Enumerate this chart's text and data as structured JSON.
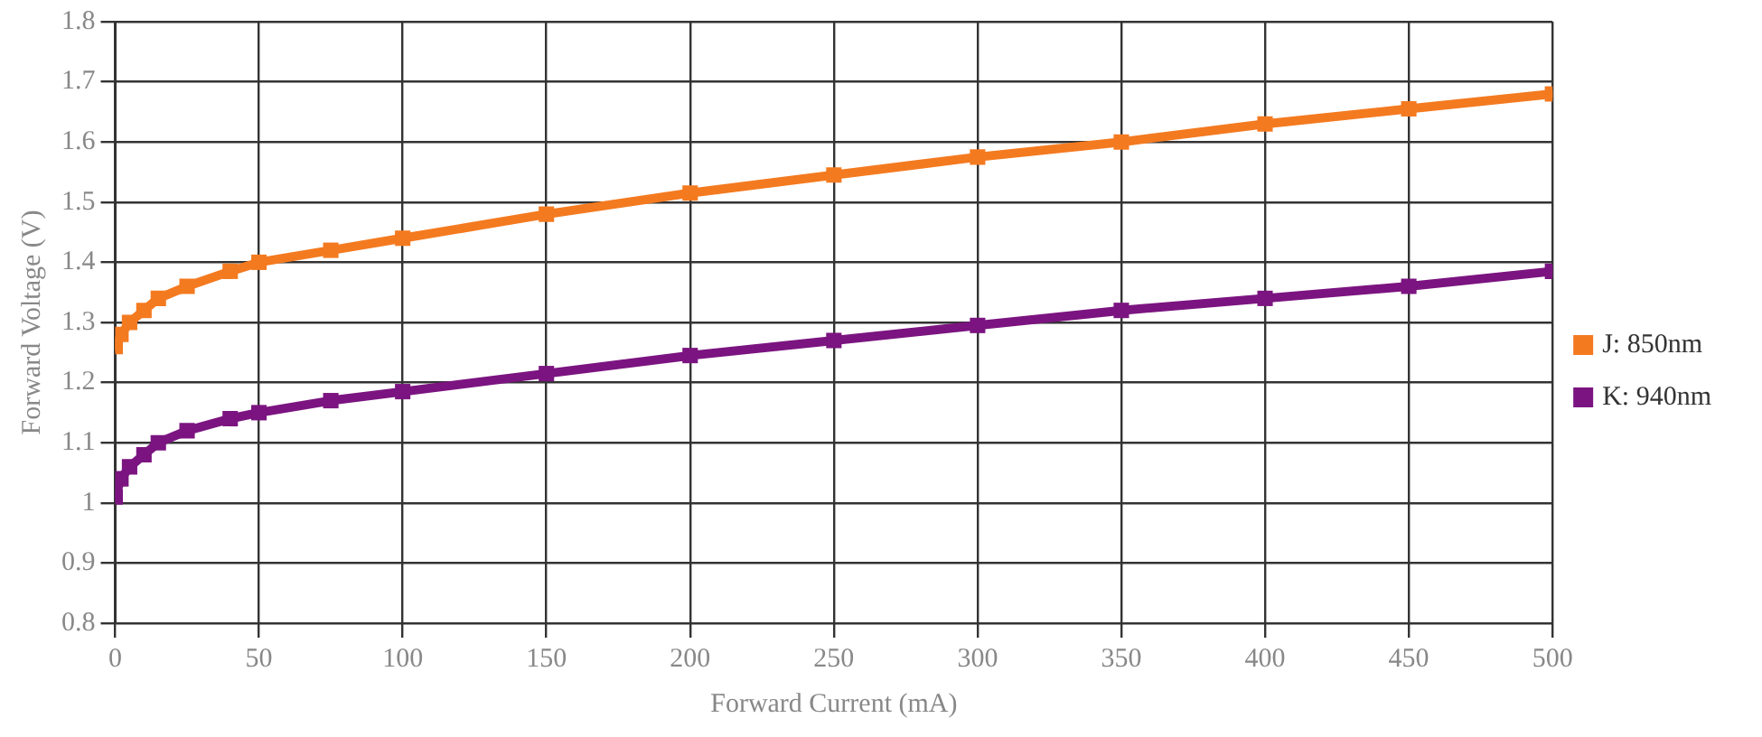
{
  "chart_data": {
    "type": "line",
    "xlabel": "Forward Current (mA)",
    "ylabel": "Forward Voltage (V)",
    "xlim": [
      0,
      500
    ],
    "xticks": [
      0,
      50,
      100,
      150,
      200,
      250,
      300,
      350,
      400,
      450,
      500
    ],
    "ylim": [
      0.8,
      1.8
    ],
    "yticks": [
      0.8,
      0.9,
      1,
      1.1,
      1.2,
      1.3,
      1.4,
      1.5,
      1.6,
      1.7,
      1.8
    ],
    "grid": true,
    "legend": "right",
    "marker": "square",
    "line_style": "solid",
    "series": [
      {
        "name": "J: 850nm",
        "color": "#f47a20",
        "x": [
          0,
          2,
          5,
          10,
          15,
          25,
          40,
          50,
          75,
          100,
          150,
          200,
          250,
          300,
          350,
          400,
          450,
          500
        ],
        "values": [
          1.26,
          1.28,
          1.3,
          1.32,
          1.34,
          1.36,
          1.385,
          1.4,
          1.42,
          1.44,
          1.48,
          1.515,
          1.545,
          1.575,
          1.6,
          1.63,
          1.655,
          1.68
        ]
      },
      {
        "name": "K: 940nm",
        "color": "#7b1480",
        "x": [
          0,
          2,
          5,
          10,
          15,
          25,
          40,
          50,
          75,
          100,
          150,
          200,
          250,
          300,
          350,
          400,
          450,
          500
        ],
        "values": [
          1.01,
          1.04,
          1.06,
          1.08,
          1.1,
          1.12,
          1.14,
          1.15,
          1.17,
          1.185,
          1.215,
          1.245,
          1.27,
          1.295,
          1.32,
          1.34,
          1.36,
          1.385
        ]
      }
    ]
  }
}
